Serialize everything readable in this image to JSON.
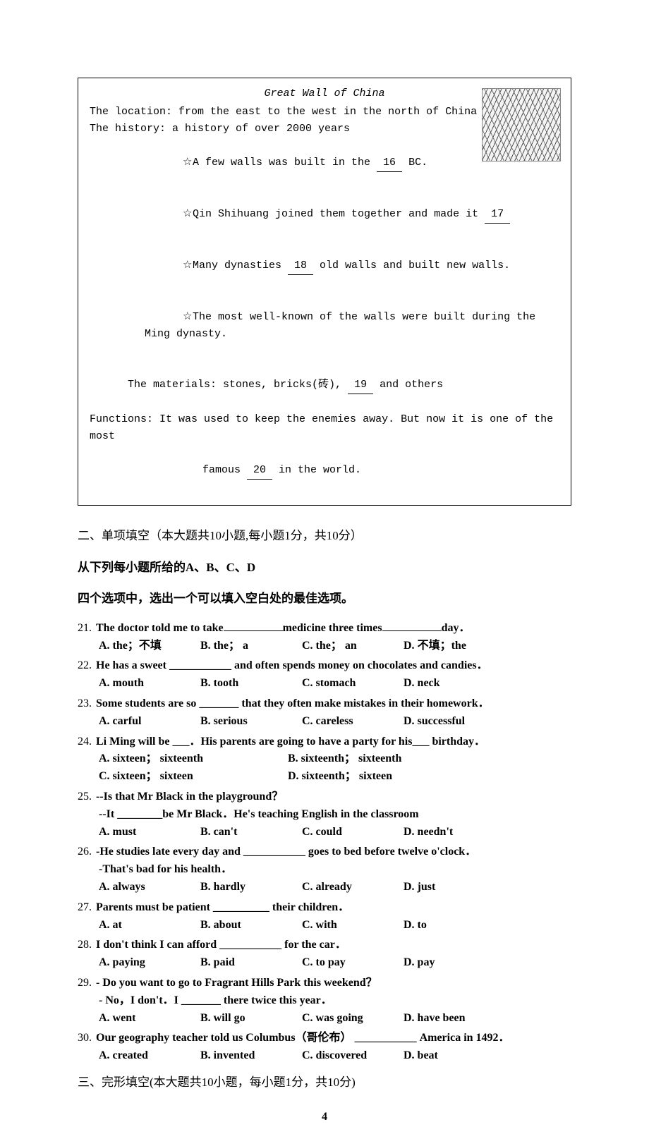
{
  "info_box": {
    "title": "Great Wall of China",
    "lines": [
      {
        "text": "The location: from the east to the west in the north of China"
      },
      {
        "text": "The history: a history of over 2000 years"
      },
      {
        "bullet": true,
        "pre": "A few walls was built in the ",
        "blank": "16",
        "post": " BC."
      },
      {
        "bullet": true,
        "pre": "Qin Shihuang joined them together and made it ",
        "blank": "17",
        "post": ""
      },
      {
        "bullet": true,
        "pre": "Many dynasties ",
        "blank": "18",
        "post": " old walls and built new walls."
      },
      {
        "bullet": true,
        "pre": "The most well-known of the walls were built during the Ming dynasty."
      },
      {
        "plain_with_blank": true,
        "pre": "The materials: stones, bricks(砖), ",
        "blank": "19",
        "post": " and others"
      },
      {
        "text": "Functions: It was used to keep the enemies away. But now it is one of the most"
      },
      {
        "indent2_with_blank": true,
        "pre": "famous ",
        "blank": "20",
        "post": " in the world."
      }
    ],
    "image_alt": "Great Wall sketch"
  },
  "section2": {
    "heading": "二、单项填空（本大题共10小题,每小题1分，共10分）",
    "instr1": "从下列每小题所给的A、B、C、D",
    "instr2": "四个选项中，选出一个可以填入空白处的最佳选项。"
  },
  "questions": [
    {
      "num": "21.",
      "stem_prefix": "The doctor told me to take",
      "mid": "medicine three times",
      "post": "day．",
      "opts": [
        [
          "A. the",
          "；",
          "不填"
        ],
        [
          "B. the",
          "；",
          " a"
        ],
        [
          "C. the",
          "；",
          " an"
        ],
        [
          "D. ",
          "不填",
          "；",
          "the"
        ]
      ]
    },
    {
      "num": "22.",
      "stem": "He has a sweet ___________ and often spends money on chocolates and candies．",
      "opts_simple": [
        "A. mouth",
        "B. tooth",
        "C. stomach",
        "D. neck"
      ]
    },
    {
      "num": "23.",
      "stem": "Some students are so _______ that they often make mistakes in their homework．",
      "opts_simple": [
        "A. carful",
        "B. serious",
        "C. careless",
        "D. successful"
      ]
    },
    {
      "num": "24.",
      "stem": "Li Ming will be ___．His parents are going to have a party for his___ birthday．",
      "opts_half": [
        [
          "A. sixteen",
          "；",
          " sixteenth"
        ],
        [
          "B. sixteenth",
          "；",
          " sixteenth"
        ],
        [
          "C. sixteen",
          "；",
          " sixteen"
        ],
        [
          "D. sixteenth",
          "；",
          " sixteen"
        ]
      ]
    },
    {
      "num": "25.",
      "dialog": [
        "--Is that Mr Black in the playground？",
        "--It ________be Mr Black．He's teaching English in the classroom"
      ],
      "opts_simple": [
        "A. must",
        "B. can't",
        "C. could",
        "D. needn't"
      ]
    },
    {
      "num": "26.",
      "dialog": [
        "-He studies late every day and ___________ goes to bed before twelve o'clock．",
        "-That's bad for his health．"
      ],
      "opts_simple": [
        "A. always",
        "B. hardly",
        "C. already",
        "D. just"
      ]
    },
    {
      "num": "27.",
      "stem": "Parents must be patient __________ their children．",
      "opts_simple": [
        "A. at",
        "B. about",
        "C. with",
        "D. to"
      ]
    },
    {
      "num": "28.",
      "stem": "I don't think I can afford ___________ for the car．",
      "opts_simple": [
        "A. paying",
        "B. paid",
        "C. to pay",
        "D. pay"
      ]
    },
    {
      "num": "29.",
      "dialog": [
        "- Do you want to go to Fragrant Hills Park this weekend？",
        "- No，I don't．I _______ there twice this year．"
      ],
      "opts_simple": [
        "A. went",
        "B. will go",
        "C. was going",
        "D. have been"
      ]
    },
    {
      "num": "30.",
      "stem_with_cn": {
        "pre": "Our geography teacher told us Columbus",
        "cn": "（哥伦布）",
        "post": " ___________ America in 1492．"
      },
      "opts_simple": [
        "A. created",
        "B. invented",
        "C. discovered",
        "D. beat"
      ]
    }
  ],
  "section3": {
    "heading": "三、完形填空(本大题共10小题，每小题1分，共10分)"
  },
  "page_number": "4"
}
